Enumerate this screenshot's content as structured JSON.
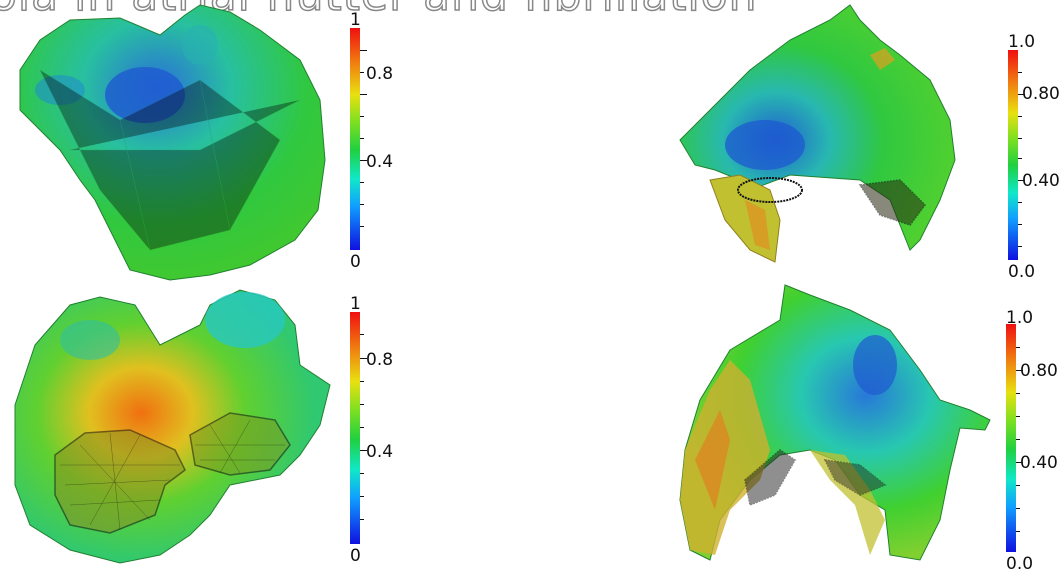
{
  "title": "ola in atrial flutter and fibrillation",
  "panels": [
    {
      "colorbar": {
        "top": "1",
        "mid1": "0.8",
        "mid2": "0.4",
        "bottom": "0"
      }
    },
    {
      "colorbar": {
        "top": "1.0",
        "mid1": "0.80",
        "mid2": "0.40",
        "bottom": "0.0"
      }
    },
    {
      "colorbar": {
        "top": "1",
        "mid1": "0.8",
        "mid2": "0.4",
        "bottom": "0"
      }
    },
    {
      "colorbar": {
        "top": "1.0",
        "mid1": "0.80",
        "mid2": "0.40",
        "bottom": "0.0"
      }
    }
  ],
  "colors": {
    "low": "#1010e0",
    "mid": "#20d040",
    "high": "#f01010"
  }
}
